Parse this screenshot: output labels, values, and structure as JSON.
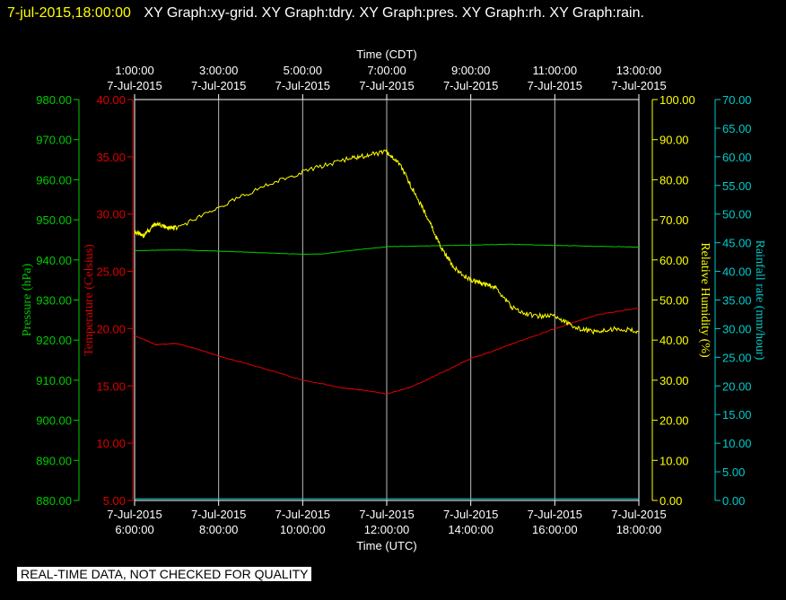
{
  "title": {
    "date": "7-jul-2015,18:00:00",
    "rest": "XY Graph:xy-grid.  XY Graph:tdry.  XY Graph:pres.  XY Graph:rh.  XY Graph:rain."
  },
  "disclaimer": "REAL-TIME DATA, NOT CHECKED FOR QUALITY",
  "colors": {
    "pressure": "#00cc00",
    "temperature": "#dd0000",
    "humidity": "#ffff00",
    "rain": "#00cccc",
    "grid": "#bbbbbb",
    "axis": "#ffffff"
  },
  "chart_data": {
    "type": "line",
    "grid": true,
    "x_top": {
      "label": "Time (CDT)",
      "ticks": [
        {
          "time": "1:00:00",
          "date": "7-Jul-2015"
        },
        {
          "time": "3:00:00",
          "date": "7-Jul-2015"
        },
        {
          "time": "5:00:00",
          "date": "7-Jul-2015"
        },
        {
          "time": "7:00:00",
          "date": "7-Jul-2015"
        },
        {
          "time": "9:00:00",
          "date": "7-Jul-2015"
        },
        {
          "time": "11:00:00",
          "date": "7-Jul-2015"
        },
        {
          "time": "13:00:00",
          "date": "7-Jul-2015"
        }
      ]
    },
    "x_bottom": {
      "label": "Time (UTC)",
      "range": [
        6,
        18
      ],
      "ticks": [
        {
          "date": "7-Jul-2015",
          "time": "6:00:00"
        },
        {
          "date": "7-Jul-2015",
          "time": "8:00:00"
        },
        {
          "date": "7-Jul-2015",
          "time": "10:00:00"
        },
        {
          "date": "7-Jul-2015",
          "time": "12:00:00"
        },
        {
          "date": "7-Jul-2015",
          "time": "14:00:00"
        },
        {
          "date": "7-Jul-2015",
          "time": "16:00:00"
        },
        {
          "date": "7-Jul-2015",
          "time": "18:00:00"
        }
      ]
    },
    "y_axes": {
      "pressure": {
        "label": "Pressure (hPa)",
        "ylim": [
          880,
          980
        ],
        "ticks": [
          "880.00",
          "890.00",
          "900.00",
          "910.00",
          "920.00",
          "930.00",
          "940.00",
          "950.00",
          "960.00",
          "970.00",
          "980.00"
        ]
      },
      "temperature": {
        "label": "Temperature (Celsius)",
        "ylim": [
          5,
          40
        ],
        "ticks": [
          "5.00",
          "10.00",
          "15.00",
          "20.00",
          "25.00",
          "30.00",
          "35.00",
          "40.00"
        ]
      },
      "humidity": {
        "label": "Relative Humidity (%)",
        "ylim": [
          0,
          100
        ],
        "ticks": [
          "0.00",
          "10.00",
          "20.00",
          "30.00",
          "40.00",
          "50.00",
          "60.00",
          "70.00",
          "80.00",
          "90.00",
          "100.00"
        ]
      },
      "rain": {
        "label": "Rainfall rate (mm/hour)",
        "ylim": [
          0,
          70
        ],
        "ticks": [
          "0.00",
          "5.00",
          "10.00",
          "15.00",
          "20.00",
          "25.00",
          "30.00",
          "35.00",
          "40.00",
          "45.00",
          "50.00",
          "55.00",
          "60.00",
          "65.00",
          "70.00"
        ]
      }
    },
    "series": [
      {
        "axis": "pressure",
        "x": [
          6.0,
          7.0,
          8.0,
          9.0,
          10.0,
          10.5,
          11.0,
          12.0,
          13.0,
          14.0,
          15.0,
          16.0,
          17.0,
          18.0
        ],
        "y": [
          942.3,
          942.5,
          942.2,
          941.8,
          941.4,
          941.5,
          942.2,
          943.3,
          943.5,
          943.7,
          943.9,
          943.6,
          943.4,
          943.2
        ]
      },
      {
        "axis": "temperature",
        "x": [
          6.0,
          6.5,
          7.0,
          7.5,
          8.0,
          9.0,
          10.0,
          11.0,
          11.5,
          12.0,
          12.5,
          13.0,
          13.5,
          14.0,
          14.5,
          15.0,
          16.0,
          17.0,
          18.0
        ],
        "y": [
          19.4,
          18.6,
          18.7,
          18.2,
          17.6,
          16.6,
          15.5,
          14.8,
          14.6,
          14.3,
          14.8,
          15.6,
          16.5,
          17.4,
          18.0,
          18.7,
          20.0,
          21.2,
          21.8
        ]
      },
      {
        "axis": "humidity",
        "x": [
          6.0,
          6.2,
          6.5,
          6.8,
          7.0,
          8.0,
          9.0,
          10.0,
          11.0,
          11.5,
          12.0,
          12.3,
          12.6,
          13.0,
          13.3,
          13.6,
          14.0,
          14.3,
          14.6,
          15.0,
          15.5,
          16.0,
          16.5,
          17.0,
          17.5,
          18.0
        ],
        "y": [
          67,
          66,
          69,
          68,
          68,
          73,
          78,
          82,
          85,
          86,
          87,
          84,
          78,
          70,
          63,
          58,
          55,
          54,
          53,
          48,
          46,
          46,
          43,
          42,
          43,
          42
        ]
      },
      {
        "axis": "rain",
        "x": [
          6.0,
          18.0
        ],
        "y": [
          0.3,
          0.3
        ]
      }
    ]
  }
}
